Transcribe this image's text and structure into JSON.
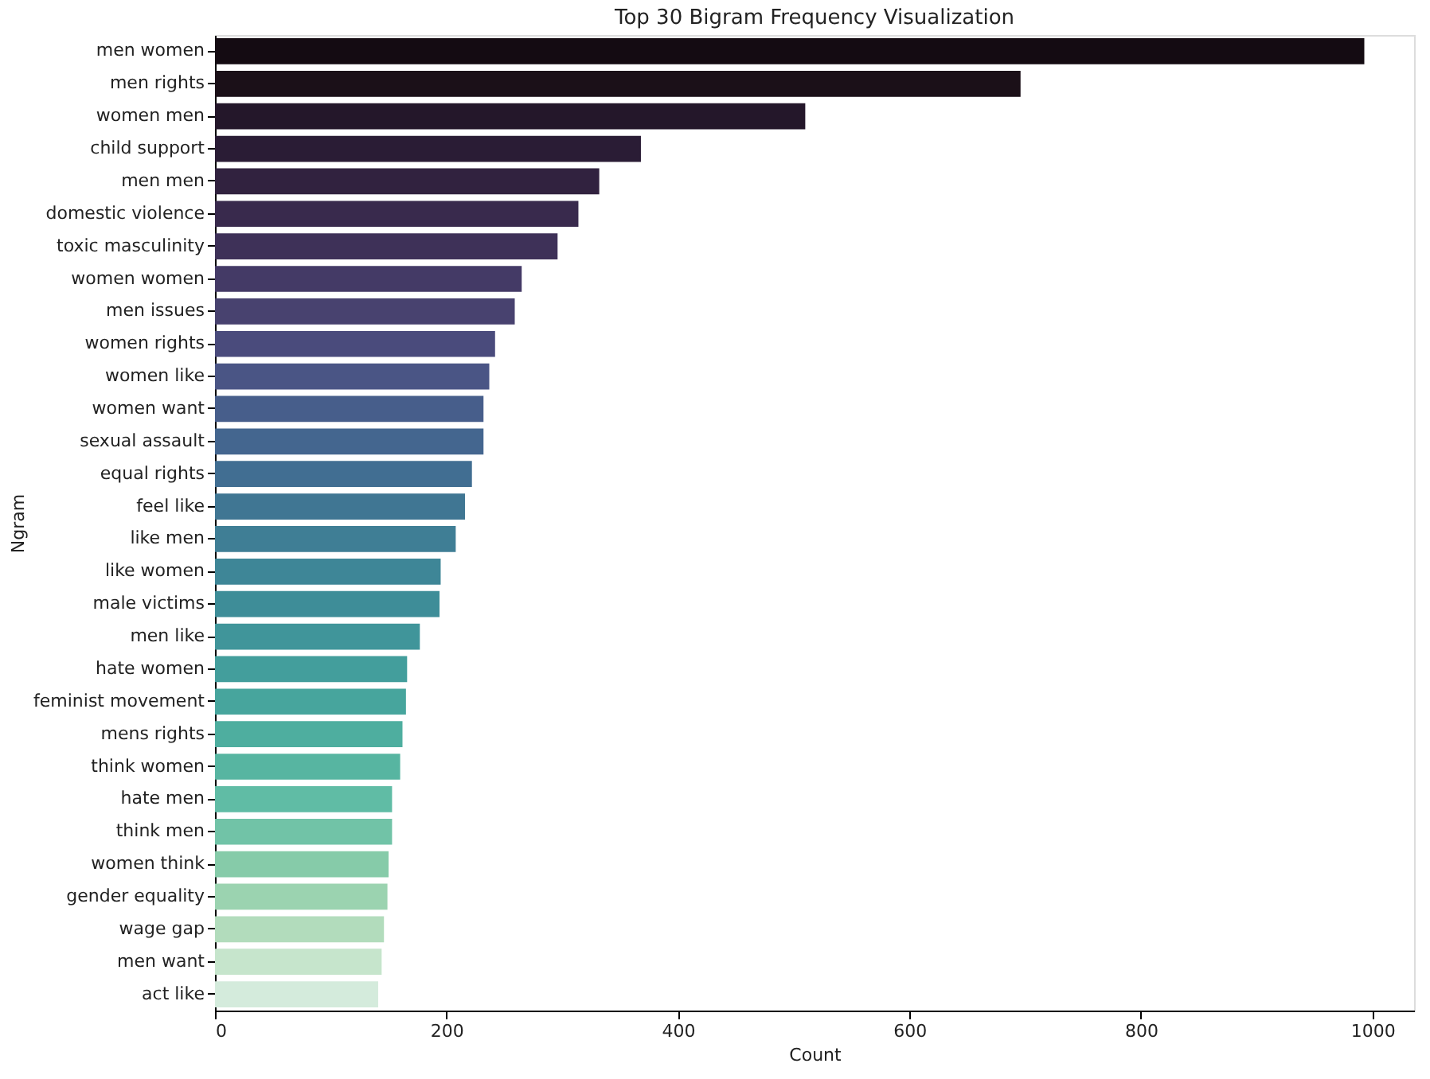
{
  "chart_data": {
    "type": "bar",
    "orientation": "horizontal",
    "title": "Top 30 Bigram Frequency Visualization",
    "xlabel": "Count",
    "ylabel": "Ngram",
    "categories": [
      "men women",
      "men rights",
      "women men",
      "child support",
      "men men",
      "domestic violence",
      "toxic masculinity",
      "women women",
      "men issues",
      "women rights",
      "women like",
      "women want",
      "sexual assault",
      "equal rights",
      "feel like",
      "like men",
      "like women",
      "male victims",
      "men like",
      "hate women",
      "feminist movement",
      "mens rights",
      "think women",
      "hate men",
      "think men",
      "women think",
      "gender equality",
      "wage gap",
      "men want",
      "act like"
    ],
    "values": [
      993,
      696,
      510,
      368,
      332,
      314,
      296,
      265,
      259,
      242,
      237,
      232,
      232,
      222,
      216,
      208,
      195,
      194,
      177,
      166,
      165,
      162,
      160,
      153,
      153,
      150,
      149,
      146,
      144,
      141
    ],
    "colors": [
      "#140b12",
      "#1b1018",
      "#24172a",
      "#2a1c35",
      "#31223f",
      "#392a4d",
      "#3e3158",
      "#443a66",
      "#48426f",
      "#4a4b7c",
      "#4a5585",
      "#475e8b",
      "#44668f",
      "#416e92",
      "#407693",
      "#3f7e95",
      "#3e8697",
      "#3e8d98",
      "#40959a",
      "#439e9c",
      "#47a59d",
      "#4eae9f",
      "#57b5a1",
      "#60bca5",
      "#71c3a7",
      "#86cba9",
      "#9bd3b0",
      "#b2dcbc",
      "#c6e5cc",
      "#d4ebdc"
    ],
    "xlim": [
      0,
      1036
    ],
    "xticks": [
      0,
      200,
      400,
      600,
      800,
      1000
    ],
    "grid": false
  }
}
